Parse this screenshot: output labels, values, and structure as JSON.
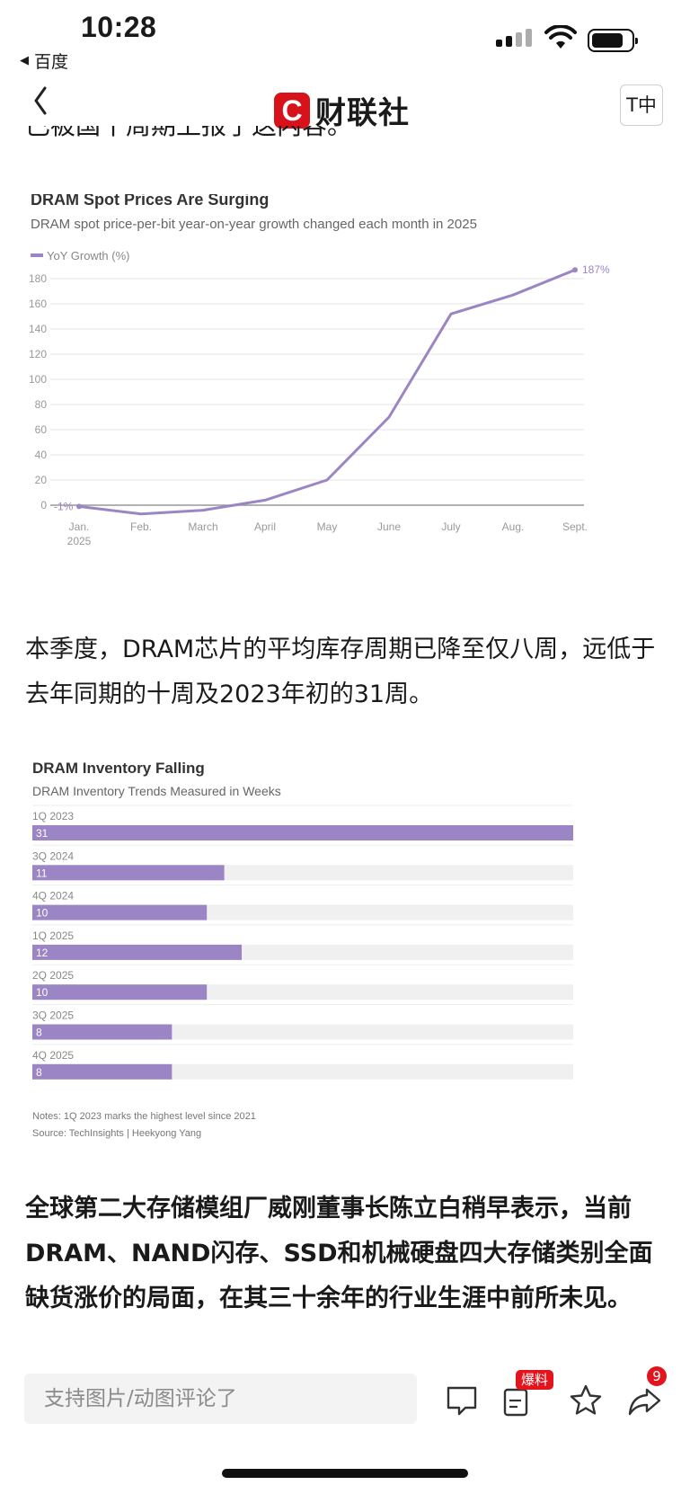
{
  "status_bar": {
    "time": "10:28",
    "back_app": "百度"
  },
  "nav": {
    "brand": "财联社",
    "brand_mark": "C",
    "font_toggle": "T中"
  },
  "article": {
    "clipped_line": "已被国十周期上报了这内容。",
    "paragraph1": "本季度，DRAM芯片的平均库存周期已降至仅八周，远低于去年同期的十周及2023年初的31周。",
    "paragraph2": "全球第二大存储模组厂威刚董事长陈立白稍早表示，当前DRAM、NAND闪存、SSD和机械硬盘四大存储类别全面缺货涨价的局面，在其三十余年的行业生涯中前所未见。"
  },
  "chart_data": [
    {
      "type": "line",
      "title": "DRAM Spot Prices Are Surging",
      "subtitle": "DRAM spot price-per-bit year-on-year growth changed each month in 2025",
      "series": [
        {
          "name": "YoY Growth (%)",
          "values": [
            -1,
            -7,
            -4,
            4,
            20,
            70,
            152,
            167,
            187
          ]
        }
      ],
      "categories": [
        "Jan.\n2025",
        "Feb.",
        "March",
        "April",
        "May",
        "June",
        "July",
        "Aug.",
        "Sept."
      ],
      "ylim": [
        0,
        180
      ],
      "yticks": [
        0,
        20,
        40,
        60,
        80,
        100,
        120,
        140,
        160,
        180
      ],
      "labels": {
        "first": "-1%",
        "last": "187%"
      },
      "grid": true,
      "legend": "top-left",
      "color": "#9b85c4"
    },
    {
      "type": "bar",
      "title": "DRAM Inventory Falling",
      "subtitle": "DRAM Inventory Trends Measured in Weeks",
      "categories": [
        "1Q 2023",
        "3Q 2024",
        "4Q 2024",
        "1Q 2025",
        "2Q 2025",
        "3Q 2025",
        "4Q 2025"
      ],
      "values": [
        31,
        11,
        10,
        12,
        10,
        8,
        8
      ],
      "xlim": [
        0,
        31
      ],
      "notes": "Notes: 1Q 2023 marks the highest level since 2021",
      "source": "Source: TechInsights | Heekyong Yang",
      "color": "#9b85c4",
      "track_color": "#f0f0f0"
    }
  ],
  "bottom_bar": {
    "comment_placeholder": "支持图片/动图评论了",
    "baoliao_badge": "爆料",
    "share_count": "9",
    "icons": [
      "comment-icon",
      "report-icon",
      "star-icon",
      "share-icon"
    ]
  }
}
